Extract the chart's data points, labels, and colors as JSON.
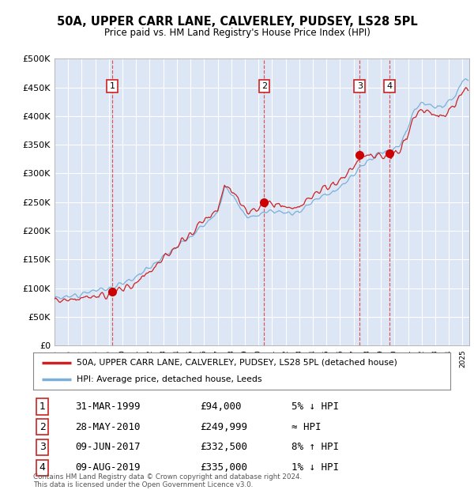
{
  "title": "50A, UPPER CARR LANE, CALVERLEY, PUDSEY, LS28 5PL",
  "subtitle": "Price paid vs. HM Land Registry's House Price Index (HPI)",
  "ylim": [
    0,
    500000
  ],
  "yticks": [
    0,
    50000,
    100000,
    150000,
    200000,
    250000,
    300000,
    350000,
    400000,
    450000,
    500000
  ],
  "background_color": "#dce6f5",
  "legend_label_red": "50A, UPPER CARR LANE, CALVERLEY, PUDSEY, LS28 5PL (detached house)",
  "legend_label_blue": "HPI: Average price, detached house, Leeds",
  "transactions": [
    {
      "num": 1,
      "date": "31-MAR-1999",
      "price": 94000,
      "hpi_rel": "5% ↓ HPI",
      "year": 1999.25
    },
    {
      "num": 2,
      "date": "28-MAY-2010",
      "price": 249999,
      "hpi_rel": "≈ HPI",
      "year": 2010.42
    },
    {
      "num": 3,
      "date": "09-JUN-2017",
      "price": 332500,
      "hpi_rel": "8% ↑ HPI",
      "year": 2017.44
    },
    {
      "num": 4,
      "date": "09-AUG-2019",
      "price": 335000,
      "hpi_rel": "1% ↓ HPI",
      "year": 2019.61
    }
  ],
  "footnote": "Contains HM Land Registry data © Crown copyright and database right 2024.\nThis data is licensed under the Open Government Licence v3.0.",
  "xmin": 1995,
  "xmax": 2025.5
}
